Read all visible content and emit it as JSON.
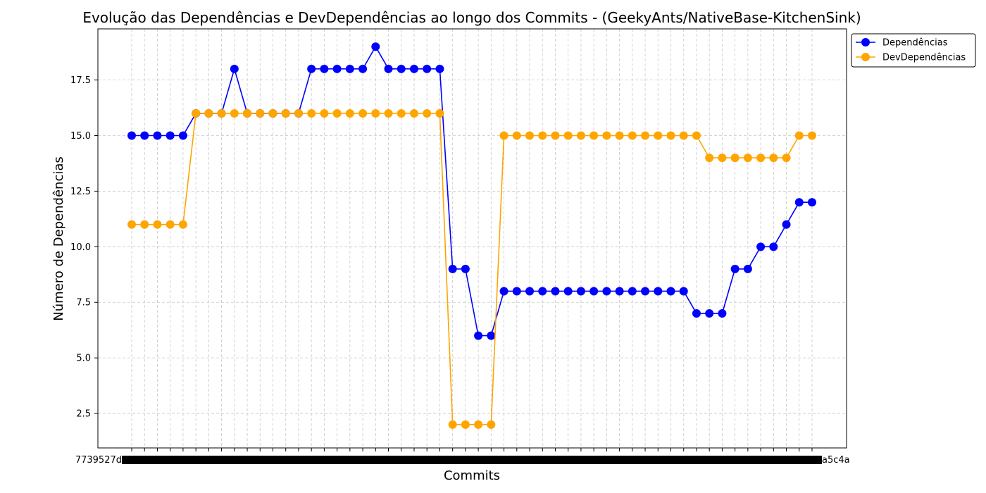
{
  "chart_data": {
    "type": "line",
    "title": "Evolução das Dependências e DevDependências ao longo dos Commits - (GeekyAnts/NativeBase-KitchenSink)",
    "xlabel": "Commits",
    "ylabel": "Número de Dependências",
    "x_tick_labels_note": "",
    "x_count": 54,
    "ylim": [
      0.95,
      19.8
    ],
    "yticks": [
      2.5,
      5.0,
      7.5,
      10.0,
      12.5,
      15.0,
      17.5
    ],
    "grid": true,
    "legend_position": "top-right outside",
    "series": [
      {
        "name": "Dependências",
        "color": "#0000ff",
        "values": [
          15,
          15,
          15,
          15,
          15,
          16,
          16,
          16,
          18,
          16,
          16,
          16,
          16,
          16,
          18,
          18,
          18,
          18,
          18,
          19,
          18,
          18,
          18,
          18,
          18,
          9,
          9,
          6,
          6,
          8,
          8,
          8,
          8,
          8,
          8,
          8,
          8,
          8,
          8,
          8,
          8,
          8,
          8,
          8,
          7,
          7,
          7,
          9,
          9,
          10,
          10,
          11,
          12,
          12
        ]
      },
      {
        "name": "DevDependências",
        "color": "#ffa500",
        "values": [
          11,
          11,
          11,
          11,
          11,
          16,
          16,
          16,
          16,
          16,
          16,
          16,
          16,
          16,
          16,
          16,
          16,
          16,
          16,
          16,
          16,
          16,
          16,
          16,
          16,
          2,
          2,
          2,
          2,
          15,
          15,
          15,
          15,
          15,
          15,
          15,
          15,
          15,
          15,
          15,
          15,
          15,
          15,
          15,
          15,
          14,
          14,
          14,
          14,
          14,
          14,
          14,
          15,
          15
        ]
      }
    ],
    "x_first_label": "7739527d",
    "x_last_label": "a5c4a"
  }
}
